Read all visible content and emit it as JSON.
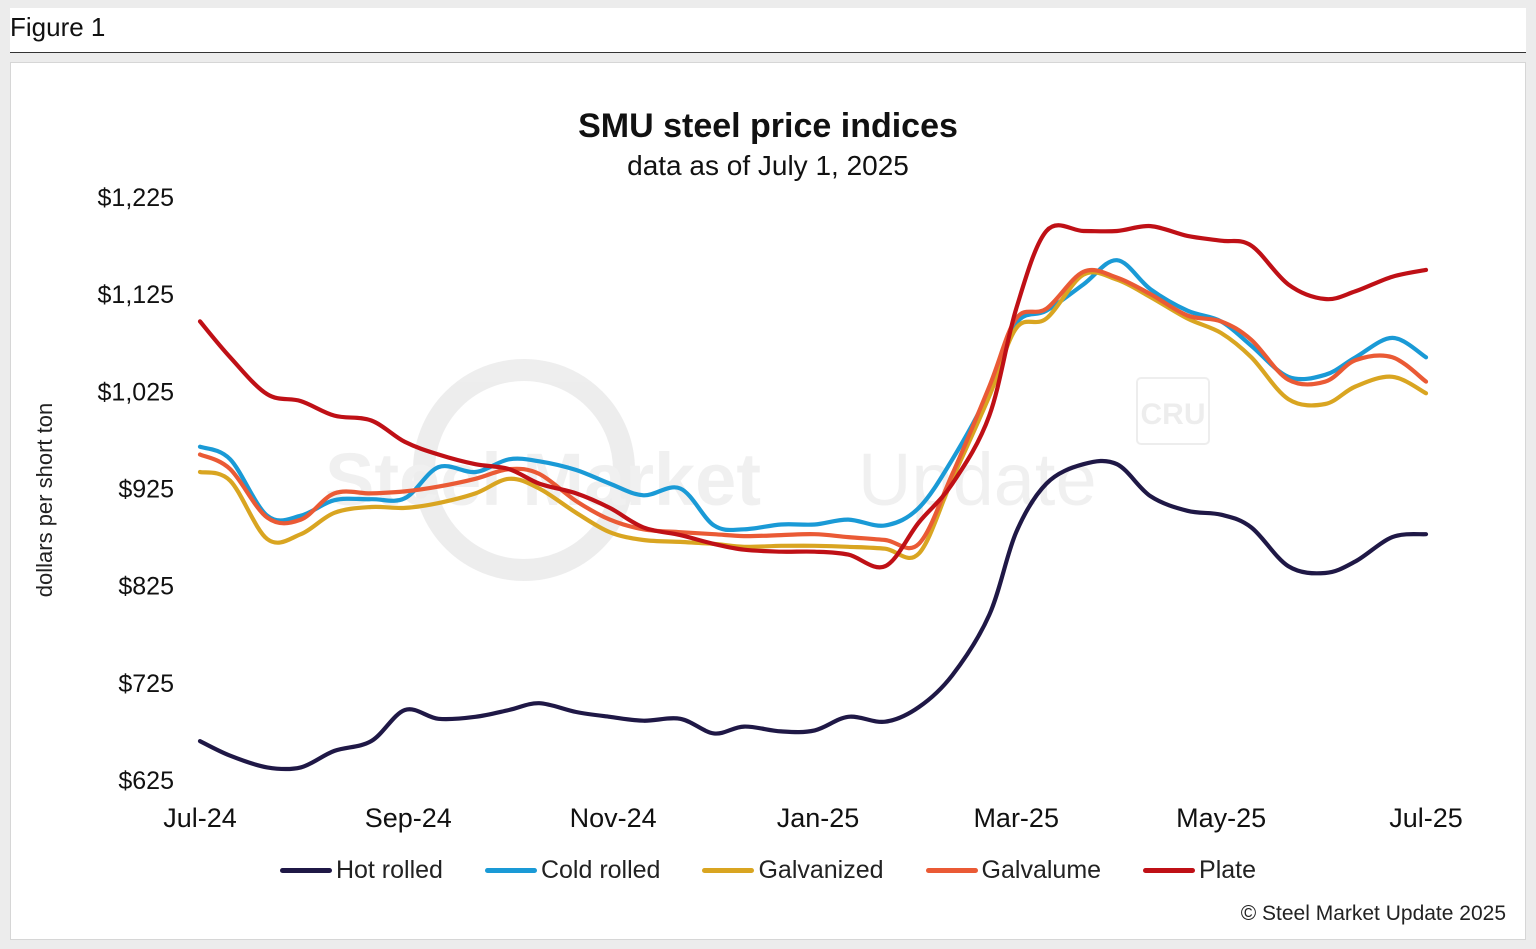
{
  "figure": {
    "label": "Figure 1"
  },
  "watermark": {
    "text_bold": "Steel Market",
    "text_light": "Update",
    "logo": "CRU"
  },
  "copyright": "© Steel Market Update 2025",
  "colors": {
    "hot_rolled": "#1f1846",
    "cold_rolled": "#1a9ad6",
    "galvanized": "#d9a521",
    "galvalume": "#ea5a35",
    "plate": "#bf1016"
  },
  "chart_data": {
    "type": "line",
    "title": "SMU steel price indices",
    "subtitle": "data as of July 1, 2025",
    "xlabel": "",
    "ylabel": "dollars per short ton",
    "ylim": [
      625,
      1225
    ],
    "yticks": [
      625,
      725,
      825,
      925,
      1025,
      1125,
      1225
    ],
    "ytick_labels": [
      "$625",
      "$725",
      "$825",
      "$925",
      "$1,025",
      "$1,125",
      "$1,225"
    ],
    "xlim": [
      "2024-07-01",
      "2025-07-01"
    ],
    "xtick_labels": [
      "Jul-24",
      "Sep-24",
      "Nov-24",
      "Jan-25",
      "Mar-25",
      "May-25",
      "Jul-25"
    ],
    "xtick_dates": [
      "2024-07-01",
      "2024-09-01",
      "2024-11-01",
      "2025-01-01",
      "2025-03-01",
      "2025-05-01",
      "2025-07-01"
    ],
    "grid": false,
    "legend": "bottom",
    "series": [
      {
        "name": "Hot rolled",
        "color_key": "hot_rolled",
        "points": [
          [
            "2024-07-01",
            665
          ],
          [
            "2024-07-10",
            650
          ],
          [
            "2024-07-21",
            638
          ],
          [
            "2024-07-31",
            638
          ],
          [
            "2024-08-10",
            655
          ],
          [
            "2024-08-21",
            665
          ],
          [
            "2024-08-31",
            697
          ],
          [
            "2024-09-10",
            688
          ],
          [
            "2024-09-21",
            690
          ],
          [
            "2024-10-01",
            697
          ],
          [
            "2024-10-10",
            704
          ],
          [
            "2024-10-21",
            695
          ],
          [
            "2024-10-31",
            690
          ],
          [
            "2024-11-10",
            686
          ],
          [
            "2024-11-21",
            688
          ],
          [
            "2024-12-01",
            673
          ],
          [
            "2024-12-10",
            680
          ],
          [
            "2024-12-21",
            675
          ],
          [
            "2024-12-31",
            676
          ],
          [
            "2025-01-10",
            690
          ],
          [
            "2025-01-21",
            685
          ],
          [
            "2025-01-31",
            700
          ],
          [
            "2025-02-10",
            733
          ],
          [
            "2025-02-21",
            795
          ],
          [
            "2025-03-01",
            880
          ],
          [
            "2025-03-10",
            930
          ],
          [
            "2025-03-21",
            950
          ],
          [
            "2025-03-31",
            950
          ],
          [
            "2025-04-10",
            917
          ],
          [
            "2025-04-21",
            902
          ],
          [
            "2025-05-01",
            898
          ],
          [
            "2025-05-10",
            885
          ],
          [
            "2025-05-21",
            845
          ],
          [
            "2025-06-01",
            838
          ],
          [
            "2025-06-10",
            850
          ],
          [
            "2025-06-21",
            875
          ],
          [
            "2025-07-01",
            878
          ]
        ]
      },
      {
        "name": "Cold rolled",
        "color_key": "cold_rolled",
        "points": [
          [
            "2024-07-01",
            968
          ],
          [
            "2024-07-10",
            955
          ],
          [
            "2024-07-21",
            897
          ],
          [
            "2024-07-31",
            897
          ],
          [
            "2024-08-10",
            913
          ],
          [
            "2024-08-21",
            914
          ],
          [
            "2024-08-31",
            915
          ],
          [
            "2024-09-10",
            947
          ],
          [
            "2024-09-21",
            942
          ],
          [
            "2024-10-01",
            955
          ],
          [
            "2024-10-10",
            953
          ],
          [
            "2024-10-21",
            944
          ],
          [
            "2024-10-31",
            930
          ],
          [
            "2024-11-10",
            918
          ],
          [
            "2024-11-21",
            925
          ],
          [
            "2024-12-01",
            887
          ],
          [
            "2024-12-10",
            883
          ],
          [
            "2024-12-21",
            888
          ],
          [
            "2024-12-31",
            888
          ],
          [
            "2025-01-10",
            893
          ],
          [
            "2025-01-21",
            887
          ],
          [
            "2025-01-31",
            905
          ],
          [
            "2025-02-10",
            955
          ],
          [
            "2025-02-21",
            1025
          ],
          [
            "2025-03-01",
            1095
          ],
          [
            "2025-03-10",
            1108
          ],
          [
            "2025-03-21",
            1135
          ],
          [
            "2025-03-31",
            1160
          ],
          [
            "2025-04-10",
            1130
          ],
          [
            "2025-04-21",
            1108
          ],
          [
            "2025-05-01",
            1097
          ],
          [
            "2025-05-10",
            1072
          ],
          [
            "2025-05-21",
            1040
          ],
          [
            "2025-06-01",
            1042
          ],
          [
            "2025-06-10",
            1060
          ],
          [
            "2025-06-21",
            1080
          ],
          [
            "2025-07-01",
            1060
          ]
        ]
      },
      {
        "name": "Galvanized",
        "color_key": "galvanized",
        "points": [
          [
            "2024-07-01",
            942
          ],
          [
            "2024-07-10",
            933
          ],
          [
            "2024-07-21",
            873
          ],
          [
            "2024-07-31",
            878
          ],
          [
            "2024-08-10",
            900
          ],
          [
            "2024-08-21",
            906
          ],
          [
            "2024-08-31",
            905
          ],
          [
            "2024-09-10",
            910
          ],
          [
            "2024-09-21",
            920
          ],
          [
            "2024-10-01",
            935
          ],
          [
            "2024-10-10",
            925
          ],
          [
            "2024-10-21",
            900
          ],
          [
            "2024-10-31",
            880
          ],
          [
            "2024-11-10",
            872
          ],
          [
            "2024-11-21",
            870
          ],
          [
            "2024-12-01",
            868
          ],
          [
            "2024-12-10",
            865
          ],
          [
            "2024-12-21",
            866
          ],
          [
            "2024-12-31",
            866
          ],
          [
            "2025-01-10",
            865
          ],
          [
            "2025-01-21",
            863
          ],
          [
            "2025-01-31",
            858
          ],
          [
            "2025-02-10",
            935
          ],
          [
            "2025-02-21",
            1020
          ],
          [
            "2025-03-01",
            1090
          ],
          [
            "2025-03-10",
            1100
          ],
          [
            "2025-03-21",
            1145
          ],
          [
            "2025-03-31",
            1140
          ],
          [
            "2025-04-10",
            1122
          ],
          [
            "2025-04-21",
            1100
          ],
          [
            "2025-05-01",
            1085
          ],
          [
            "2025-05-10",
            1060
          ],
          [
            "2025-05-21",
            1017
          ],
          [
            "2025-06-01",
            1012
          ],
          [
            "2025-06-10",
            1030
          ],
          [
            "2025-06-21",
            1040
          ],
          [
            "2025-07-01",
            1023
          ]
        ]
      },
      {
        "name": "Galvalume",
        "color_key": "galvalume",
        "points": [
          [
            "2024-07-01",
            960
          ],
          [
            "2024-07-10",
            945
          ],
          [
            "2024-07-21",
            895
          ],
          [
            "2024-07-31",
            893
          ],
          [
            "2024-08-10",
            920
          ],
          [
            "2024-08-21",
            920
          ],
          [
            "2024-08-31",
            922
          ],
          [
            "2024-09-10",
            927
          ],
          [
            "2024-09-21",
            935
          ],
          [
            "2024-10-01",
            945
          ],
          [
            "2024-10-10",
            940
          ],
          [
            "2024-10-21",
            912
          ],
          [
            "2024-10-31",
            893
          ],
          [
            "2024-11-10",
            883
          ],
          [
            "2024-11-21",
            880
          ],
          [
            "2024-12-01",
            878
          ],
          [
            "2024-12-10",
            876
          ],
          [
            "2024-12-21",
            877
          ],
          [
            "2024-12-31",
            878
          ],
          [
            "2025-01-10",
            875
          ],
          [
            "2025-01-21",
            872
          ],
          [
            "2025-01-31",
            868
          ],
          [
            "2025-02-10",
            940
          ],
          [
            "2025-02-21",
            1030
          ],
          [
            "2025-03-01",
            1100
          ],
          [
            "2025-03-10",
            1110
          ],
          [
            "2025-03-21",
            1148
          ],
          [
            "2025-03-31",
            1142
          ],
          [
            "2025-04-10",
            1125
          ],
          [
            "2025-04-21",
            1103
          ],
          [
            "2025-05-01",
            1097
          ],
          [
            "2025-05-10",
            1078
          ],
          [
            "2025-05-21",
            1037
          ],
          [
            "2025-06-01",
            1035
          ],
          [
            "2025-06-10",
            1057
          ],
          [
            "2025-06-21",
            1060
          ],
          [
            "2025-07-01",
            1035
          ]
        ]
      },
      {
        "name": "Plate",
        "color_key": "plate",
        "points": [
          [
            "2024-07-01",
            1097
          ],
          [
            "2024-07-10",
            1060
          ],
          [
            "2024-07-21",
            1022
          ],
          [
            "2024-07-31",
            1015
          ],
          [
            "2024-08-10",
            1000
          ],
          [
            "2024-08-21",
            995
          ],
          [
            "2024-08-31",
            973
          ],
          [
            "2024-09-10",
            960
          ],
          [
            "2024-09-21",
            950
          ],
          [
            "2024-10-01",
            945
          ],
          [
            "2024-10-10",
            930
          ],
          [
            "2024-10-21",
            920
          ],
          [
            "2024-10-31",
            905
          ],
          [
            "2024-11-10",
            885
          ],
          [
            "2024-11-21",
            877
          ],
          [
            "2024-12-01",
            868
          ],
          [
            "2024-12-10",
            862
          ],
          [
            "2024-12-21",
            860
          ],
          [
            "2024-12-31",
            860
          ],
          [
            "2025-01-10",
            857
          ],
          [
            "2025-01-21",
            845
          ],
          [
            "2025-01-31",
            890
          ],
          [
            "2025-02-10",
            930
          ],
          [
            "2025-02-21",
            1000
          ],
          [
            "2025-03-01",
            1110
          ],
          [
            "2025-03-10",
            1190
          ],
          [
            "2025-03-21",
            1190
          ],
          [
            "2025-03-31",
            1190
          ],
          [
            "2025-04-10",
            1195
          ],
          [
            "2025-04-21",
            1185
          ],
          [
            "2025-05-01",
            1180
          ],
          [
            "2025-05-10",
            1175
          ],
          [
            "2025-05-21",
            1135
          ],
          [
            "2025-06-01",
            1120
          ],
          [
            "2025-06-10",
            1128
          ],
          [
            "2025-06-21",
            1143
          ],
          [
            "2025-07-01",
            1150
          ]
        ]
      }
    ]
  }
}
